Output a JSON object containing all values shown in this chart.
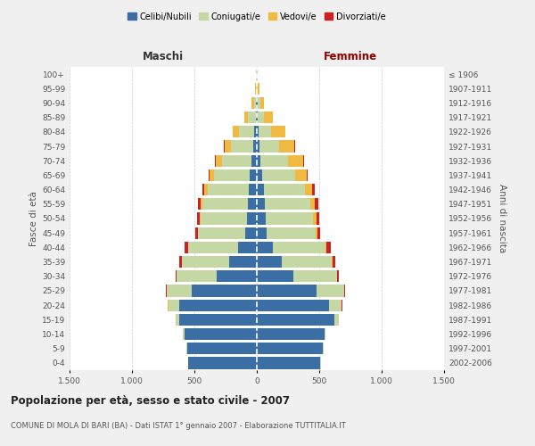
{
  "age_groups": [
    "0-4",
    "5-9",
    "10-14",
    "15-19",
    "20-24",
    "25-29",
    "30-34",
    "35-39",
    "40-44",
    "45-49",
    "50-54",
    "55-59",
    "60-64",
    "65-69",
    "70-74",
    "75-79",
    "80-84",
    "85-89",
    "90-94",
    "95-99",
    "100+"
  ],
  "birth_years": [
    "2002-2006",
    "1997-2001",
    "1992-1996",
    "1987-1991",
    "1982-1986",
    "1977-1981",
    "1972-1976",
    "1967-1971",
    "1962-1966",
    "1957-1961",
    "1952-1956",
    "1947-1951",
    "1942-1946",
    "1937-1941",
    "1932-1936",
    "1927-1931",
    "1922-1926",
    "1917-1921",
    "1912-1916",
    "1907-1911",
    "≤ 1906"
  ],
  "colors": {
    "celibi": "#3a6ea5",
    "coniugati": "#c5d8a4",
    "vedovi": "#f0b942",
    "divorziati": "#cc2222"
  },
  "maschi": {
    "celibi": [
      550,
      560,
      580,
      620,
      620,
      520,
      320,
      220,
      150,
      90,
      80,
      75,
      65,
      55,
      40,
      30,
      20,
      10,
      5,
      3,
      2
    ],
    "coniugati": [
      2,
      5,
      10,
      30,
      90,
      200,
      320,
      380,
      400,
      380,
      370,
      360,
      330,
      290,
      240,
      180,
      120,
      60,
      20,
      5,
      3
    ],
    "vedovi": [
      0,
      0,
      0,
      1,
      1,
      2,
      2,
      2,
      3,
      5,
      10,
      15,
      25,
      35,
      50,
      50,
      50,
      30,
      15,
      5,
      2
    ],
    "divorziati": [
      0,
      0,
      0,
      1,
      2,
      5,
      10,
      20,
      25,
      15,
      20,
      20,
      15,
      5,
      5,
      5,
      0,
      0,
      0,
      0,
      0
    ]
  },
  "femmine": {
    "celibi": [
      510,
      530,
      540,
      620,
      580,
      480,
      290,
      200,
      130,
      80,
      70,
      65,
      55,
      40,
      30,
      20,
      15,
      10,
      5,
      3,
      2
    ],
    "coniugati": [
      2,
      5,
      12,
      35,
      100,
      220,
      350,
      400,
      420,
      390,
      380,
      360,
      330,
      270,
      220,
      160,
      100,
      50,
      20,
      5,
      2
    ],
    "vedovi": [
      0,
      0,
      0,
      1,
      2,
      2,
      3,
      5,
      8,
      15,
      25,
      40,
      60,
      90,
      120,
      120,
      110,
      70,
      35,
      15,
      5
    ],
    "divorziati": [
      0,
      0,
      0,
      1,
      3,
      8,
      15,
      25,
      35,
      20,
      25,
      25,
      20,
      5,
      5,
      5,
      0,
      0,
      0,
      0,
      0
    ]
  },
  "title": "Popolazione per età, sesso e stato civile - 2007",
  "subtitle": "COMUNE DI MOLA DI BARI (BA) - Dati ISTAT 1° gennaio 2007 - Elaborazione TUTTITALIA.IT",
  "xlabel_left": "Maschi",
  "xlabel_right": "Femmine",
  "ylabel_left": "Fasce di età",
  "ylabel_right": "Anni di nascita",
  "xlim": 1500,
  "legend_labels": [
    "Celibi/Nubili",
    "Coniugati/e",
    "Vedovi/e",
    "Divorziati/e"
  ],
  "background_color": "#f0f0f0",
  "plot_bg": "#ffffff"
}
